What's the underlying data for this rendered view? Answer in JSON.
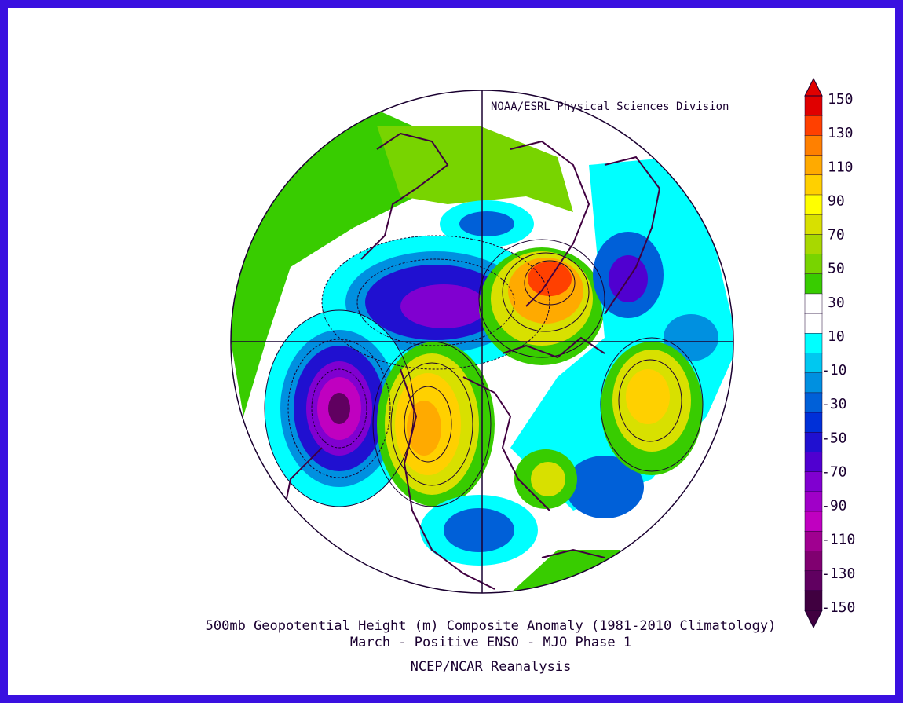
{
  "credit": "NOAA/ESRL Physical Sciences Division",
  "title_line1": "500mb Geopotential Height (m) Composite Anomaly (1981-2010 Climatology)",
  "title_line2": "March - Positive ENSO - MJO Phase 1",
  "title_line3": "NCEP/NCAR Reanalysis",
  "map": {
    "projection": "polar-stereographic-north",
    "variable": "500mb geopotential height anomaly",
    "units": "m"
  },
  "colorbar": {
    "tick_labels": [
      "150",
      "130",
      "110",
      "90",
      "70",
      "50",
      "30",
      "10",
      "-10",
      "-30",
      "-50",
      "-70",
      "-90",
      "-110",
      "-130",
      "-150"
    ],
    "colors": [
      "#e00000",
      "#ff4000",
      "#ff8000",
      "#ffaa00",
      "#ffd000",
      "#ffff00",
      "#d8e000",
      "#a8d800",
      "#78d400",
      "#38cc00",
      "#ffffff",
      "#ffffff",
      "#00ffff",
      "#00c8f0",
      "#0090e0",
      "#0060d8",
      "#0030d8",
      "#2010d0",
      "#5000d0",
      "#8000d0",
      "#a000c8",
      "#c000c0",
      "#a00090",
      "#800070",
      "#600060",
      "#400040"
    ]
  }
}
